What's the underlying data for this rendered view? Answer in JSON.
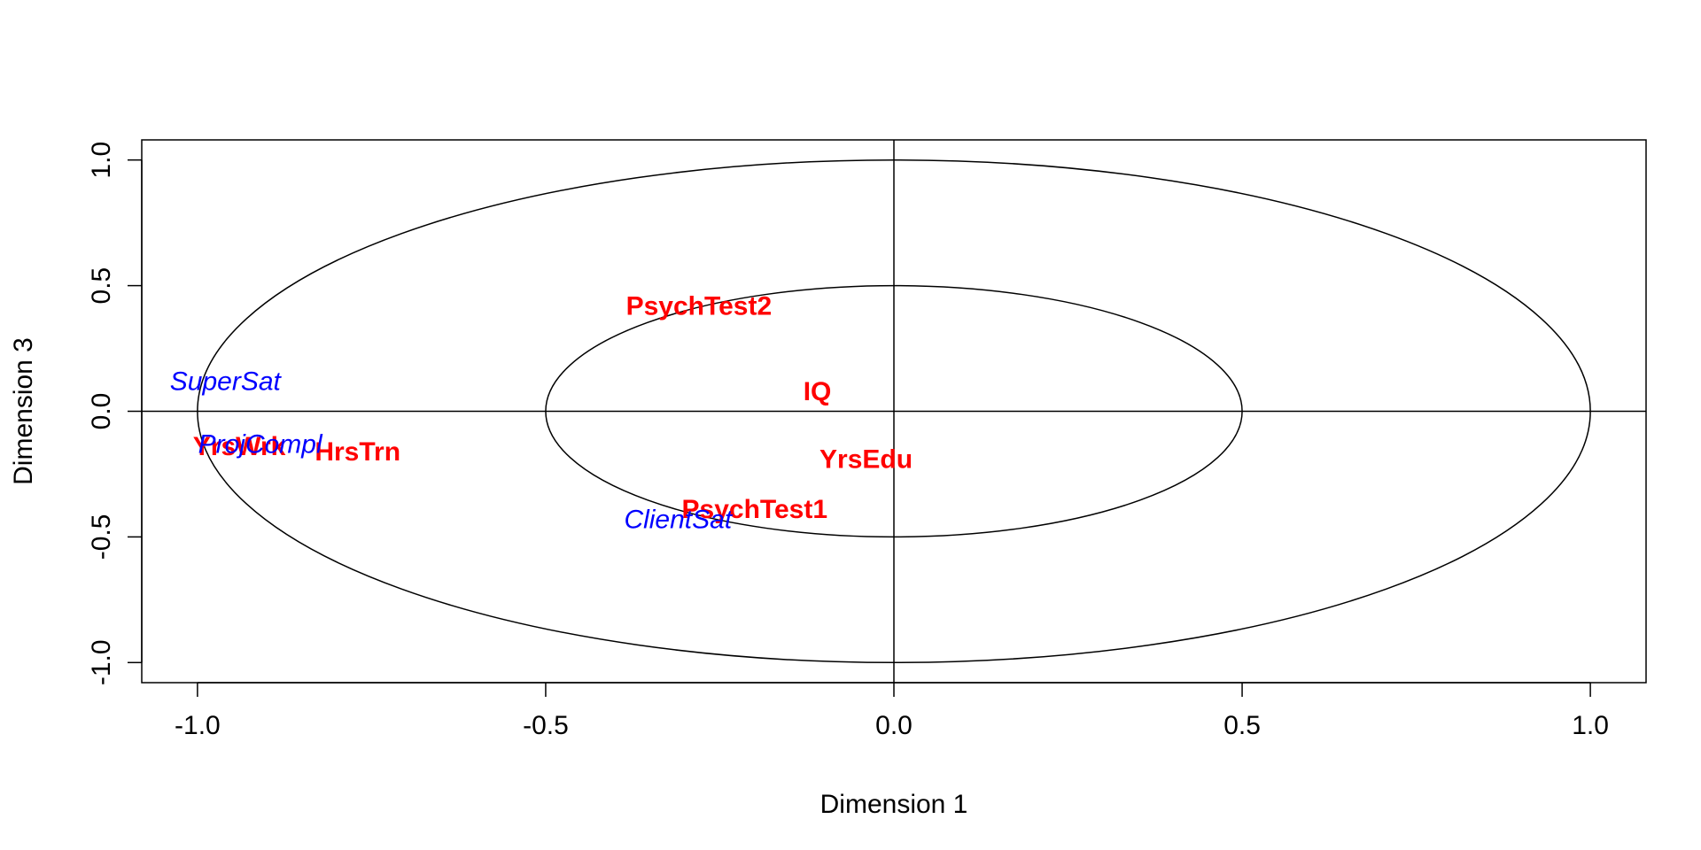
{
  "chart_data": {
    "type": "scatter",
    "title": "",
    "xlabel": "Dimension  1",
    "ylabel": "Dimension  3",
    "xlim": [
      -1.08,
      1.08
    ],
    "ylim": [
      -1.08,
      1.08
    ],
    "xticks": [
      {
        "value": -1.0,
        "label": "-1.0"
      },
      {
        "value": -0.5,
        "label": "-0.5"
      },
      {
        "value": 0.0,
        "label": "0.0"
      },
      {
        "value": 0.5,
        "label": "0.5"
      },
      {
        "value": 1.0,
        "label": "1.0"
      }
    ],
    "yticks": [
      {
        "value": -1.0,
        "label": "-1.0"
      },
      {
        "value": -0.5,
        "label": "-0.5"
      },
      {
        "value": 0.0,
        "label": "0.0"
      },
      {
        "value": 0.5,
        "label": "0.5"
      },
      {
        "value": 1.0,
        "label": "1.0"
      }
    ],
    "circles": [
      1.0,
      0.5
    ],
    "reference_lines": {
      "x": 0,
      "y": 0
    },
    "grid": false,
    "legend": "none",
    "series": [
      {
        "color": "#ff0000",
        "font_weight": "bold",
        "font_style": "normal",
        "points": [
          {
            "label": "PsychTest2",
            "x": -0.28,
            "y": 0.42
          },
          {
            "label": "IQ",
            "x": -0.11,
            "y": 0.08
          },
          {
            "label": "YrsEdu",
            "x": -0.04,
            "y": -0.19
          },
          {
            "label": "PsychTest1",
            "x": -0.2,
            "y": -0.39
          },
          {
            "label": "HrsTrn",
            "x": -0.77,
            "y": -0.16
          },
          {
            "label": "YrsWrk",
            "x": -0.94,
            "y": -0.14
          }
        ]
      },
      {
        "color": "#0000ff",
        "font_weight": "normal",
        "font_style": "italic",
        "points": [
          {
            "label": "SuperSat",
            "x": -0.96,
            "y": 0.12
          },
          {
            "label": "ProjCompl",
            "x": -0.91,
            "y": -0.13
          },
          {
            "label": "ClientSat",
            "x": -0.31,
            "y": -0.43
          }
        ]
      }
    ]
  }
}
